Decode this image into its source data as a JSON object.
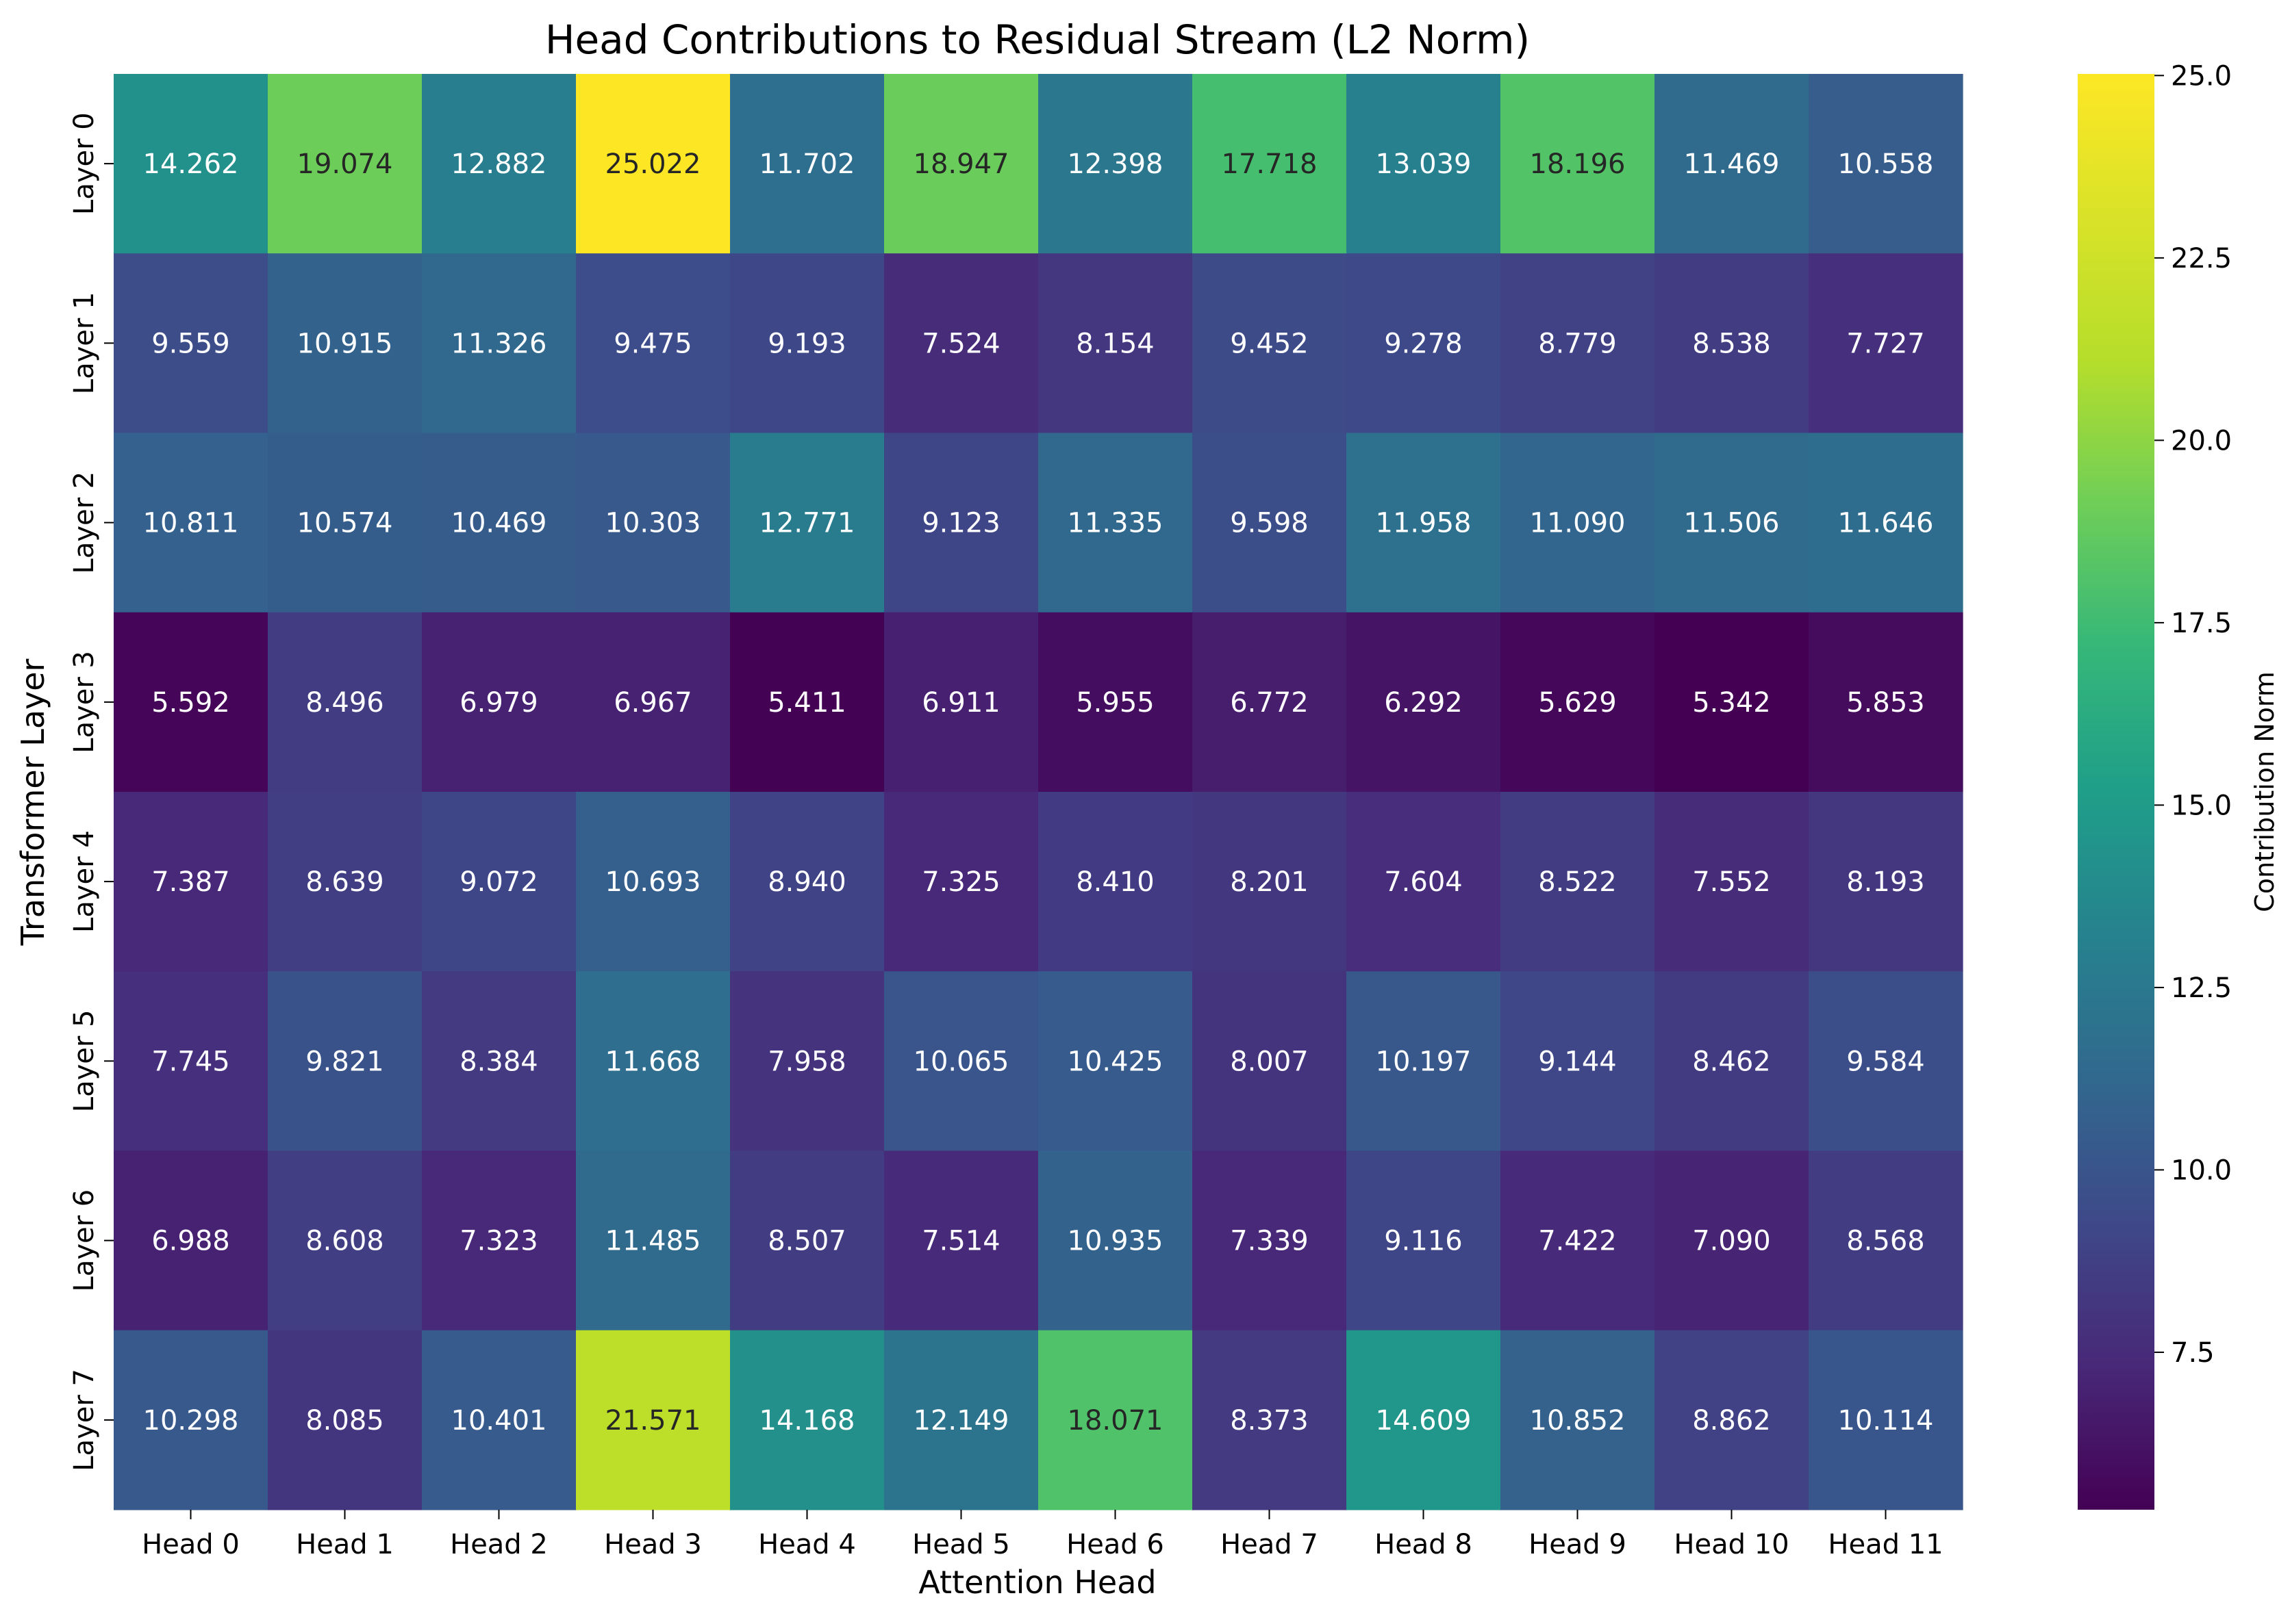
{
  "chart_data": {
    "type": "heatmap",
    "title": "Head Contributions to Residual Stream (L2 Norm)",
    "xlabel": "Attention Head",
    "ylabel": "Transformer Layer",
    "x_categories": [
      "Head 0",
      "Head 1",
      "Head 2",
      "Head 3",
      "Head 4",
      "Head 5",
      "Head 6",
      "Head 7",
      "Head 8",
      "Head 9",
      "Head 10",
      "Head 11"
    ],
    "y_categories": [
      "Layer 0",
      "Layer 1",
      "Layer 2",
      "Layer 3",
      "Layer 4",
      "Layer 5",
      "Layer 6",
      "Layer 7"
    ],
    "values": [
      [
        "14.262",
        "19.074",
        "12.882",
        "25.022",
        "11.702",
        "18.947",
        "12.398",
        "17.718",
        "13.039",
        "18.196",
        "11.469",
        "10.558"
      ],
      [
        "9.559",
        "10.915",
        "11.326",
        "9.475",
        "9.193",
        "7.524",
        "8.154",
        "9.452",
        "9.278",
        "8.779",
        "8.538",
        "7.727"
      ],
      [
        "10.811",
        "10.574",
        "10.469",
        "10.303",
        "12.771",
        "9.123",
        "11.335",
        "9.598",
        "11.958",
        "11.090",
        "11.506",
        "11.646"
      ],
      [
        "5.592",
        "8.496",
        "6.979",
        "6.967",
        "5.411",
        "6.911",
        "5.955",
        "6.772",
        "6.292",
        "5.629",
        "5.342",
        "5.853"
      ],
      [
        "7.387",
        "8.639",
        "9.072",
        "10.693",
        "8.940",
        "7.325",
        "8.410",
        "8.201",
        "7.604",
        "8.522",
        "7.552",
        "8.193"
      ],
      [
        "7.745",
        "9.821",
        "8.384",
        "11.668",
        "7.958",
        "10.065",
        "10.425",
        "8.007",
        "10.197",
        "9.144",
        "8.462",
        "9.584"
      ],
      [
        "6.988",
        "8.608",
        "7.323",
        "11.485",
        "8.507",
        "7.514",
        "10.935",
        "7.339",
        "9.116",
        "7.422",
        "7.090",
        "8.568"
      ],
      [
        "10.298",
        "8.085",
        "10.401",
        "21.571",
        "14.168",
        "12.149",
        "18.071",
        "8.373",
        "14.609",
        "10.852",
        "8.862",
        "10.114"
      ]
    ],
    "colormap": "viridis",
    "colorbar": {
      "label": "Contribution Norm",
      "min": 5.342,
      "max": 25.022,
      "ticks": [
        "7.5",
        "10.0",
        "12.5",
        "15.0",
        "17.5",
        "20.0",
        "22.5",
        "25.0"
      ]
    }
  }
}
